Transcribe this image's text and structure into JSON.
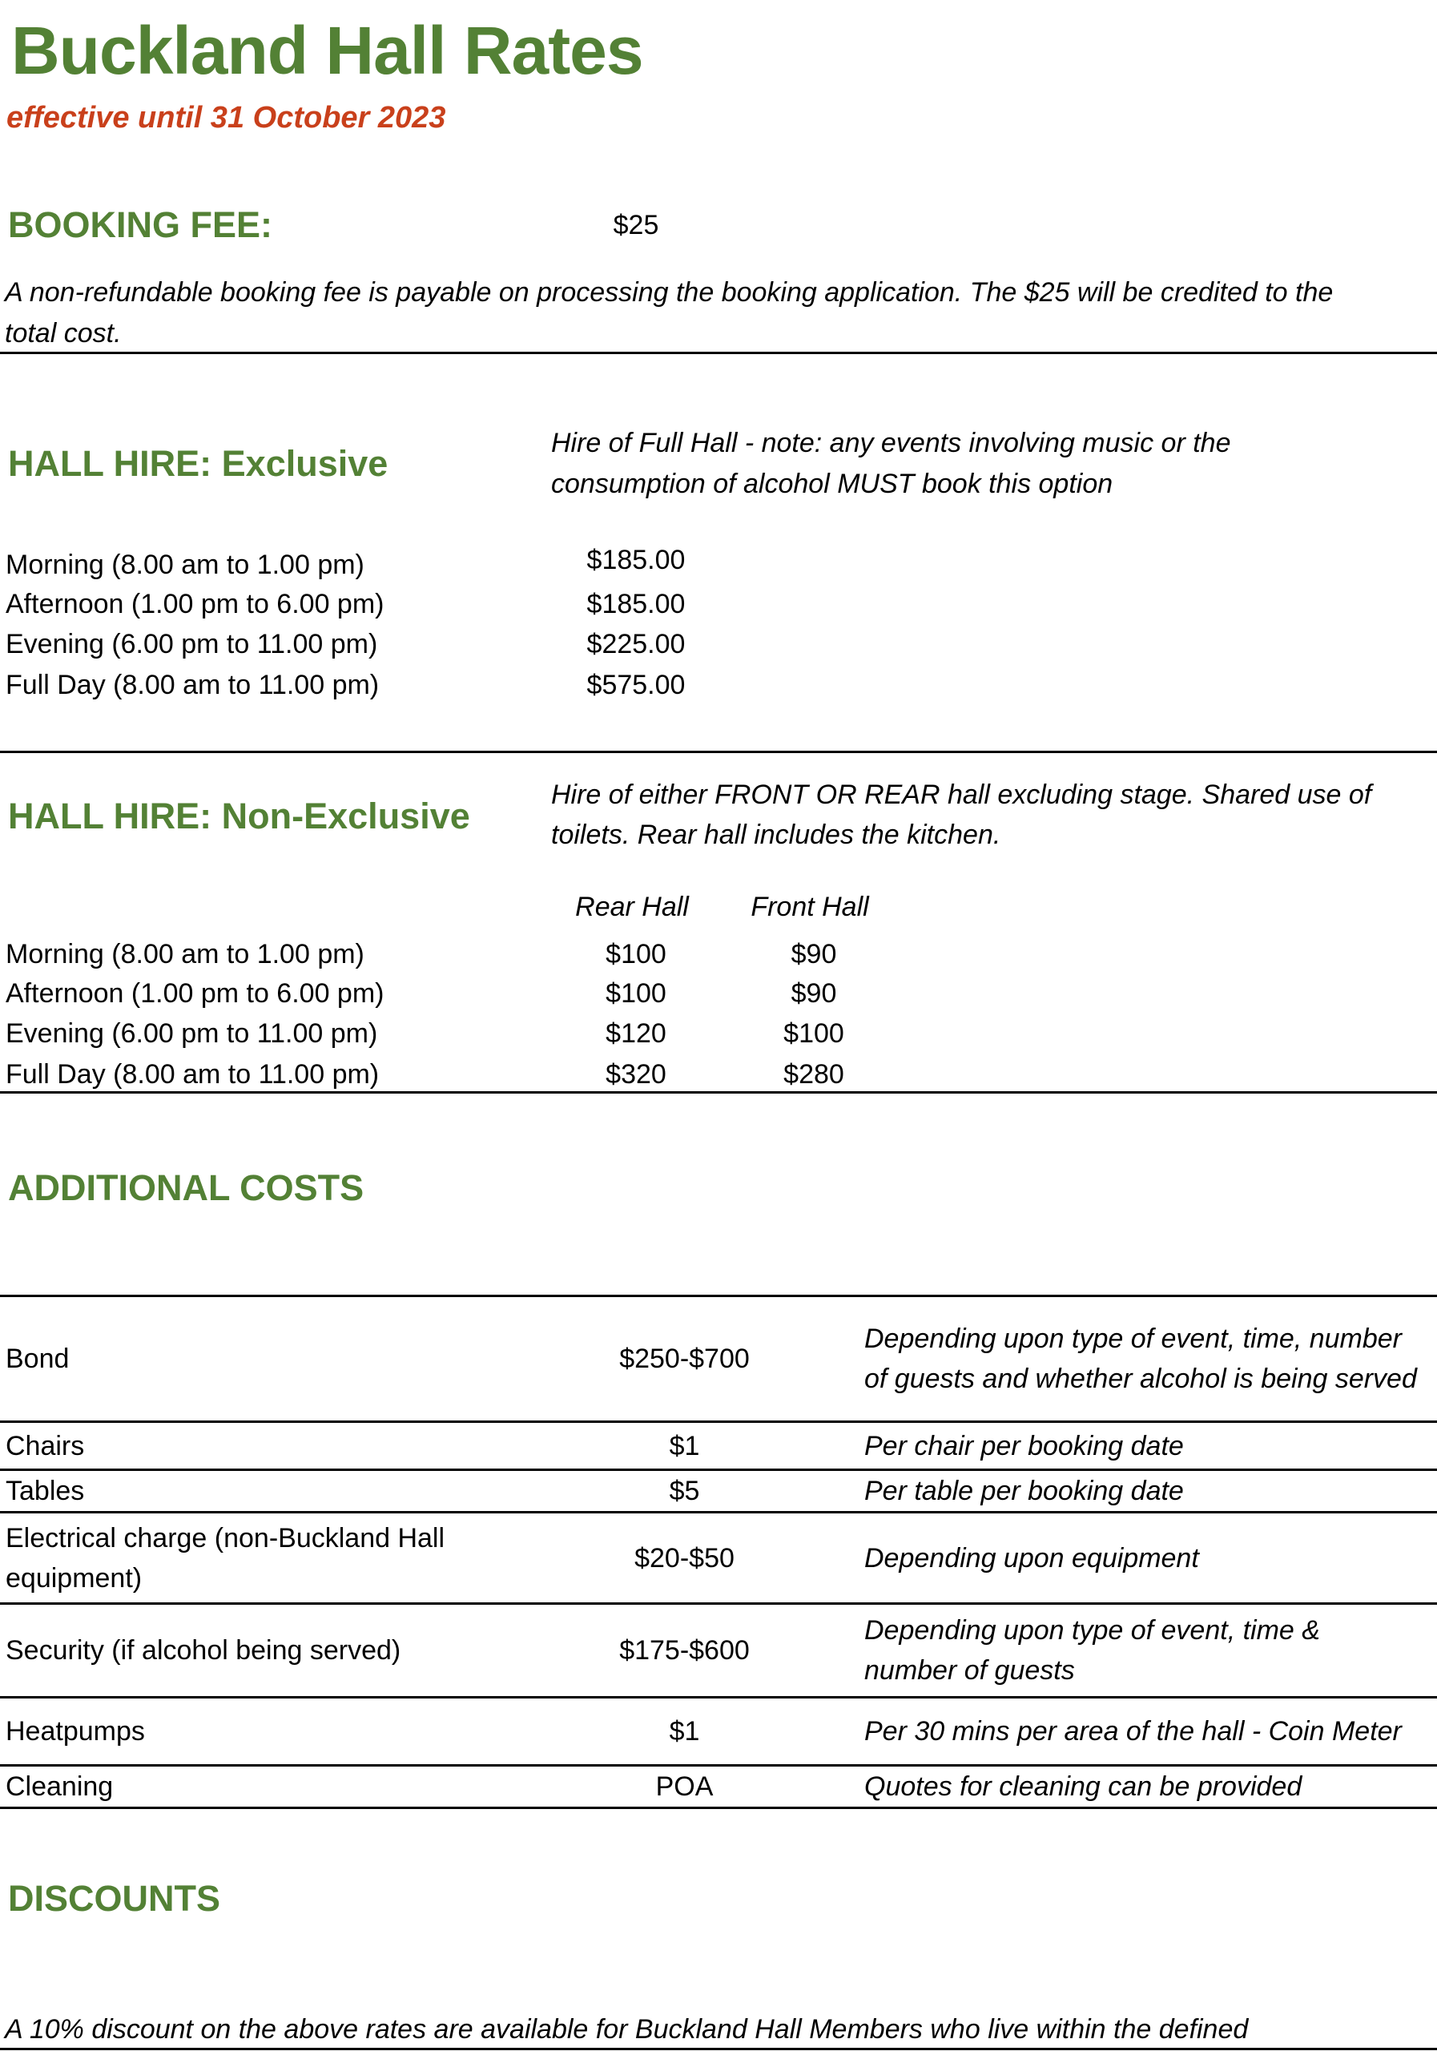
{
  "title": "Buckland Hall Rates",
  "subtitle": "effective until 31 October 2023",
  "booking_fee": {
    "heading": "BOOKING FEE:",
    "amount": "$25",
    "note_line1": "A non-refundable booking fee is payable on processing the booking application. The $25 will be credited to the",
    "note_line2": "total cost."
  },
  "exclusive": {
    "heading": "HALL HIRE: Exclusive",
    "note_line1": "Hire of Full Hall - note: any events involving music or the",
    "note_line2": "consumption of alcohol MUST book this option",
    "rows": [
      {
        "label": "Morning (8.00 am to 1.00 pm)",
        "price": "$185.00"
      },
      {
        "label": "Afternoon (1.00 pm to 6.00 pm)",
        "price": "$185.00"
      },
      {
        "label": "Evening (6.00 pm to 11.00 pm)",
        "price": "$225.00"
      },
      {
        "label": "Full Day (8.00 am to 11.00 pm)",
        "price": "$575.00"
      }
    ]
  },
  "non_exclusive": {
    "heading": "HALL HIRE: Non-Exclusive",
    "note_line1": "Hire of either FRONT OR REAR hall excluding stage. Shared use of",
    "note_line2": "toilets. Rear hall includes the kitchen.",
    "col_rear": "Rear Hall",
    "col_front": "Front Hall",
    "rows": [
      {
        "label": "Morning (8.00 am to 1.00 pm)",
        "rear": "$100",
        "front": "$90"
      },
      {
        "label": "Afternoon (1.00 pm to 6.00 pm)",
        "rear": "$100",
        "front": "$90"
      },
      {
        "label": "Evening (6.00 pm to 11.00 pm)",
        "rear": "$120",
        "front": "$100"
      },
      {
        "label": "Full Day (8.00 am to 11.00 pm)",
        "rear": "$320",
        "front": "$280"
      }
    ]
  },
  "additional": {
    "heading": "ADDITIONAL COSTS",
    "rows": [
      {
        "item": "Bond",
        "price": "$250-$700",
        "desc": "Depending upon type of event, time, number of guests and whether alcohol is being served"
      },
      {
        "item": "Chairs",
        "price": "$1",
        "desc": "Per chair per booking date"
      },
      {
        "item": "Tables",
        "price": "$5",
        "desc": "Per table per booking date"
      },
      {
        "item": "Electrical charge (non-Buckland Hall equipment)",
        "price": "$20-$50",
        "desc": "Depending upon equipment"
      },
      {
        "item": "Security (if alcohol being served)",
        "price": "$175-$600",
        "desc": "Depending upon type of event, time & number of guests"
      },
      {
        "item": "Heatpumps",
        "price": "$1",
        "desc": "Per 30 mins per area of the hall - Coin Meter"
      },
      {
        "item": "Cleaning",
        "price": "POA",
        "desc": "Quotes for cleaning can be provided"
      }
    ]
  },
  "discounts": {
    "heading": "DISCOUNTS",
    "text": "A 10% discount on the above rates are available for Buckland Hall Members who live within the defined"
  },
  "colors": {
    "heading_green": "#538135",
    "subtitle_red": "#c9401b"
  }
}
